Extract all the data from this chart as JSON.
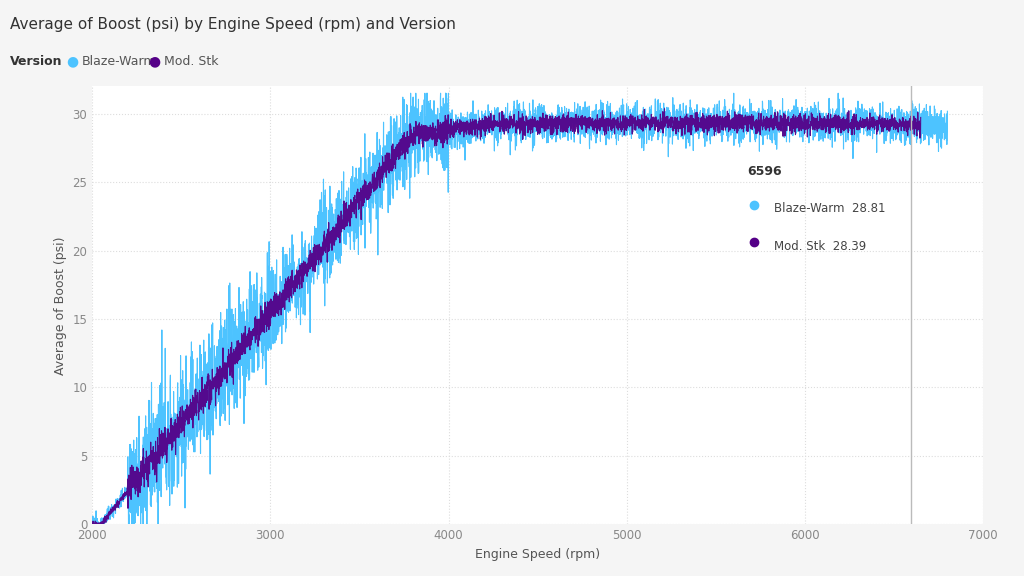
{
  "title": "Average of Boost (psi) by Engine Speed (rpm) and Version",
  "xlabel": "Engine Speed (rpm)",
  "ylabel": "Average of Boost (psi)",
  "legend_title": "Version",
  "legend_entries": [
    "Blaze-Warm",
    "Mod. Stk"
  ],
  "blaze_color": "#4DC3FF",
  "modstk_color": "#550088",
  "xlim": [
    2000,
    7000
  ],
  "ylim": [
    0,
    32
  ],
  "yticks": [
    0,
    5,
    10,
    15,
    20,
    25,
    30
  ],
  "xticks": [
    2000,
    3000,
    4000,
    5000,
    6000,
    7000
  ],
  "vertical_line_x": 6596,
  "tooltip_x": 6596,
  "tooltip_blaze": "28.81",
  "tooltip_modstk": "28.39",
  "background_color": "#F5F5F5",
  "plot_bg_color": "#FFFFFF",
  "grid_color": "#DDDDDD",
  "title_fontsize": 11,
  "axis_label_fontsize": 9,
  "tick_fontsize": 8.5,
  "legend_fontsize": 9
}
